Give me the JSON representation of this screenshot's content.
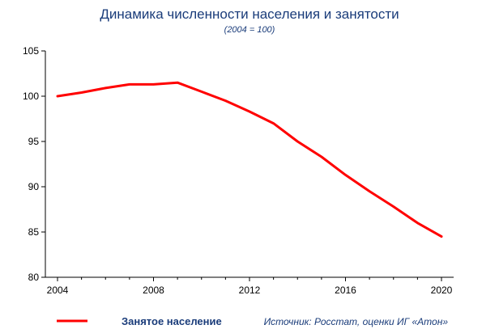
{
  "chart_data": {
    "type": "line",
    "title": "Динамика численности населения и занятости",
    "subtitle": "(2004 = 100)",
    "xlabel": "",
    "ylabel": "",
    "xlim": [
      2004,
      2020
    ],
    "ylim": [
      80,
      105
    ],
    "x_ticks": [
      2004,
      2008,
      2012,
      2016,
      2020
    ],
    "y_ticks": [
      80,
      85,
      90,
      95,
      100,
      105
    ],
    "grid": false,
    "legend_position": "bottom-left",
    "series": [
      {
        "name": "Занятое население",
        "color": "#ff0000",
        "points": [
          [
            2004,
            100.0
          ],
          [
            2005,
            100.4
          ],
          [
            2006,
            100.9
          ],
          [
            2007,
            101.3
          ],
          [
            2008,
            101.3
          ],
          [
            2009,
            101.5
          ],
          [
            2010,
            100.5
          ],
          [
            2011,
            99.5
          ],
          [
            2012,
            98.3
          ],
          [
            2013,
            97.0
          ],
          [
            2014,
            95.0
          ],
          [
            2015,
            93.3
          ],
          [
            2016,
            91.3
          ],
          [
            2017,
            89.5
          ],
          [
            2018,
            87.8
          ],
          [
            2019,
            86.0
          ],
          [
            2020,
            84.5
          ]
        ]
      }
    ],
    "source": "Источник: Росстат, оценки ИГ «Атон»"
  }
}
